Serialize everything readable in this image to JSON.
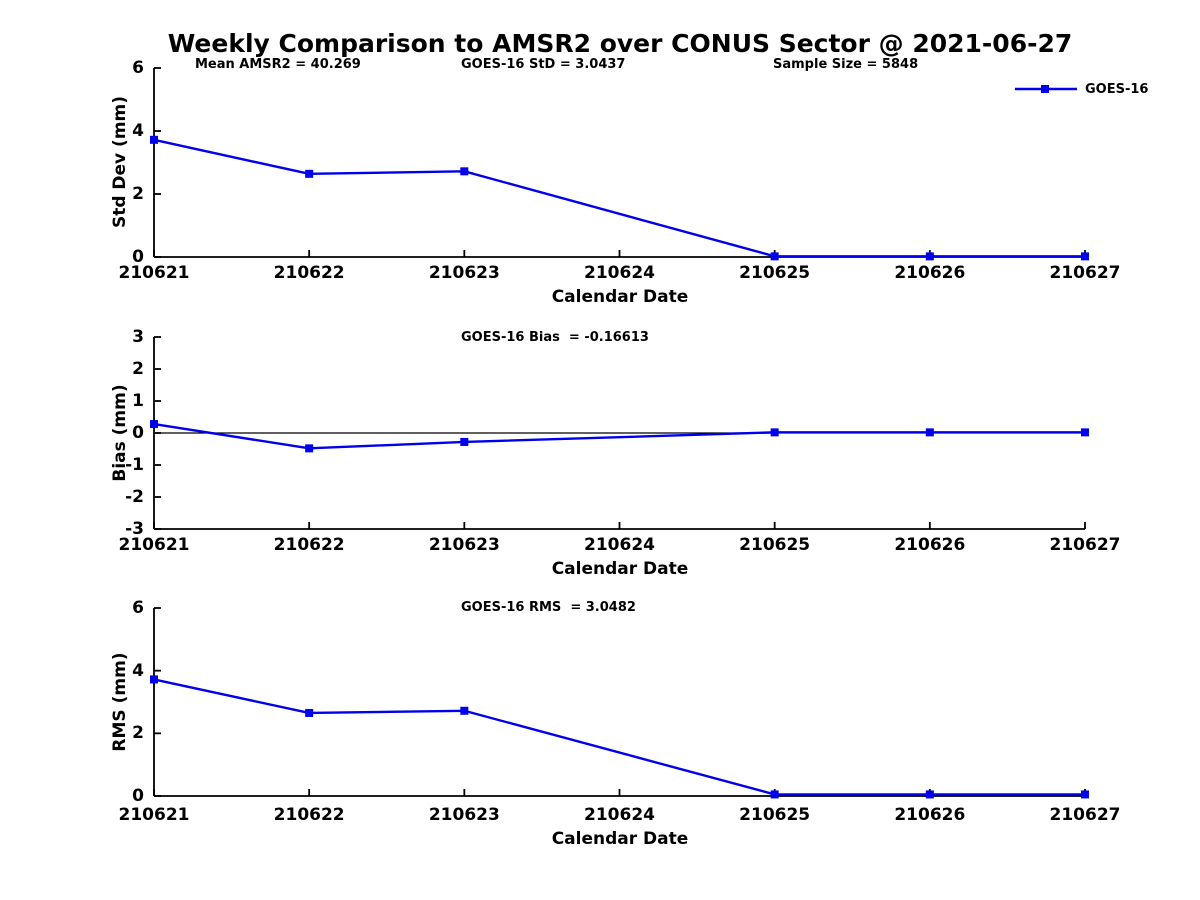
{
  "figure_title": "Weekly Comparison to AMSR2 over CONUS Sector @ 2021-06-27",
  "colors": {
    "series_blue": "#0000EE",
    "axis_black": "#000000"
  },
  "legend": {
    "label": "GOES-16"
  },
  "annotations": {
    "mean_amsr2": "Mean AMSR2 = 40.269",
    "goes16_std": "GOES-16 StD = 3.0437",
    "sample_size": "Sample Size = 5848",
    "goes16_bias": "GOES-16 Bias  = -0.16613",
    "goes16_rms": "GOES-16 RMS  = 3.0482"
  },
  "chart_data": [
    {
      "type": "line",
      "panel": "std-dev",
      "xlabel": "Calendar Date",
      "ylabel": "Std Dev (mm)",
      "ylim": [
        0,
        6
      ],
      "yticks": [
        0,
        2,
        4,
        6
      ],
      "xticks": [
        210621,
        210622,
        210623,
        210624,
        210625,
        210626,
        210627
      ],
      "x": [
        210621,
        210622,
        210623,
        210625,
        210626,
        210627
      ],
      "series": [
        {
          "name": "GOES-16",
          "color": "#0000EE",
          "marker": "square",
          "values": [
            3.72,
            2.64,
            2.72,
            0.02,
            0.02,
            0.02
          ]
        }
      ],
      "grid": false,
      "legend_position": "top-right",
      "zero_line": false
    },
    {
      "type": "line",
      "panel": "bias",
      "xlabel": "Calendar Date",
      "ylabel": "Bias (mm)",
      "ylim": [
        -3,
        3
      ],
      "yticks": [
        -3,
        -2,
        -1,
        0,
        1,
        2,
        3
      ],
      "xticks": [
        210621,
        210622,
        210623,
        210624,
        210625,
        210626,
        210627
      ],
      "x": [
        210621,
        210622,
        210623,
        210625,
        210626,
        210627
      ],
      "series": [
        {
          "name": "GOES-16",
          "color": "#0000EE",
          "marker": "square",
          "values": [
            0.28,
            -0.48,
            -0.28,
            0.02,
            0.02,
            0.02
          ]
        }
      ],
      "grid": false,
      "legend_position": "none",
      "zero_line": true
    },
    {
      "type": "line",
      "panel": "rms",
      "xlabel": "Calendar Date",
      "ylabel": "RMS (mm)",
      "ylim": [
        0,
        6
      ],
      "yticks": [
        0,
        2,
        4,
        6
      ],
      "xticks": [
        210621,
        210622,
        210623,
        210624,
        210625,
        210626,
        210627
      ],
      "x": [
        210621,
        210622,
        210623,
        210625,
        210626,
        210627
      ],
      "series": [
        {
          "name": "GOES-16",
          "color": "#0000EE",
          "marker": "square",
          "values": [
            3.72,
            2.65,
            2.72,
            0.05,
            0.05,
            0.05
          ]
        }
      ],
      "grid": false,
      "legend_position": "none",
      "zero_line": false
    }
  ]
}
